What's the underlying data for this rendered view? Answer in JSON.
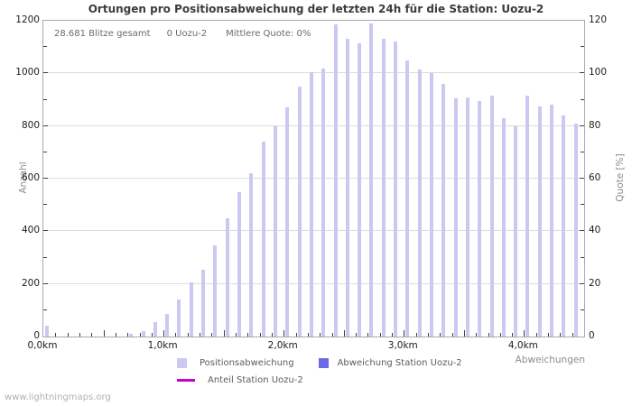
{
  "title": "Ortungen pro Positionsabweichung der letzten 24h für die Station: Uozu-2",
  "stats": {
    "total": "28.681 Blitze gesamt",
    "station": "0 Uozu-2",
    "mean_quote": "Mittlere Quote: 0%"
  },
  "axes": {
    "left": {
      "label": "Anzahl",
      "ticks": [
        "0",
        "200",
        "400",
        "600",
        "800",
        "1000",
        "1200"
      ],
      "max": 1200
    },
    "right": {
      "label": "Quote [%]",
      "ticks": [
        "0",
        "20",
        "40",
        "60",
        "80",
        "100",
        "120"
      ],
      "max": 120
    },
    "x": {
      "label": "Abweichungen",
      "tick_labels": [
        "0,0km",
        "1,0km",
        "2,0km",
        "3,0km",
        "4,0km"
      ],
      "tick_km": [
        0,
        1,
        2,
        3,
        4
      ],
      "range_km": [
        0,
        4.5
      ]
    }
  },
  "legend": [
    {
      "label": "Positionsabweichung",
      "color": "#c9c9f1",
      "type": "square"
    },
    {
      "label": "Abweichung Station Uozu-2",
      "color": "#6a6ae4",
      "type": "square"
    },
    {
      "label": "Anteil Station Uozu-2",
      "color": "#cc00cc",
      "type": "line"
    }
  ],
  "watermark": "www.lightningmaps.org",
  "colors": {
    "bar": "#c9c9f1",
    "station_bar": "#6a6ae4",
    "quote_line": "#cc00cc",
    "grid": "#dcdcdc",
    "frame": "#a9a9a9"
  },
  "chart_data": {
    "type": "bar",
    "title": "Ortungen pro Positionsabweichung der letzten 24h für die Station: Uozu-2",
    "xlabel": "Abweichungen",
    "ylabel_left": "Anzahl",
    "ylabel_right": "Quote [%]",
    "xlim_km": [
      0,
      4.5
    ],
    "ylim_left": [
      0,
      1200
    ],
    "ylim_right": [
      0,
      120
    ],
    "grid": "horizontal",
    "legend_position": "bottom",
    "bin_width_km": 0.1,
    "x_km": [
      0.0,
      0.1,
      0.2,
      0.3,
      0.4,
      0.5,
      0.6,
      0.7,
      0.8,
      0.9,
      1.0,
      1.1,
      1.2,
      1.3,
      1.4,
      1.5,
      1.6,
      1.7,
      1.8,
      1.9,
      2.0,
      2.1,
      2.2,
      2.3,
      2.4,
      2.5,
      2.6,
      2.7,
      2.8,
      2.9,
      3.0,
      3.1,
      3.2,
      3.3,
      3.4,
      3.5,
      3.6,
      3.7,
      3.8,
      3.9,
      4.0,
      4.1,
      4.2,
      4.3,
      4.4
    ],
    "series": [
      {
        "name": "Positionsabweichung",
        "axis": "left",
        "style": "bar",
        "color": "#c9c9f1",
        "values": [
          40,
          0,
          0,
          0,
          0,
          0,
          0,
          10,
          20,
          55,
          85,
          140,
          205,
          255,
          345,
          450,
          550,
          620,
          740,
          800,
          870,
          950,
          1005,
          1020,
          1185,
          1130,
          1115,
          1190,
          1130,
          1120,
          1050,
          1015,
          1000,
          960,
          905,
          910,
          895,
          915,
          830,
          800,
          915,
          875,
          880,
          840,
          810
        ]
      },
      {
        "name": "Abweichung Station Uozu-2",
        "axis": "left",
        "style": "bar",
        "color": "#6a6ae4",
        "values": [
          0,
          0,
          0,
          0,
          0,
          0,
          0,
          0,
          0,
          0,
          0,
          0,
          0,
          0,
          0,
          0,
          0,
          0,
          0,
          0,
          0,
          0,
          0,
          0,
          0,
          0,
          0,
          0,
          0,
          0,
          0,
          0,
          0,
          0,
          0,
          0,
          0,
          0,
          0,
          0,
          0,
          0,
          0,
          0,
          0
        ]
      },
      {
        "name": "Anteil Station Uozu-2",
        "axis": "right",
        "style": "line",
        "color": "#cc00cc",
        "values": [
          0,
          0,
          0,
          0,
          0,
          0,
          0,
          0,
          0,
          0,
          0,
          0,
          0,
          0,
          0,
          0,
          0,
          0,
          0,
          0,
          0,
          0,
          0,
          0,
          0,
          0,
          0,
          0,
          0,
          0,
          0,
          0,
          0,
          0,
          0,
          0,
          0,
          0,
          0,
          0,
          0,
          0,
          0,
          0,
          0
        ]
      }
    ]
  }
}
